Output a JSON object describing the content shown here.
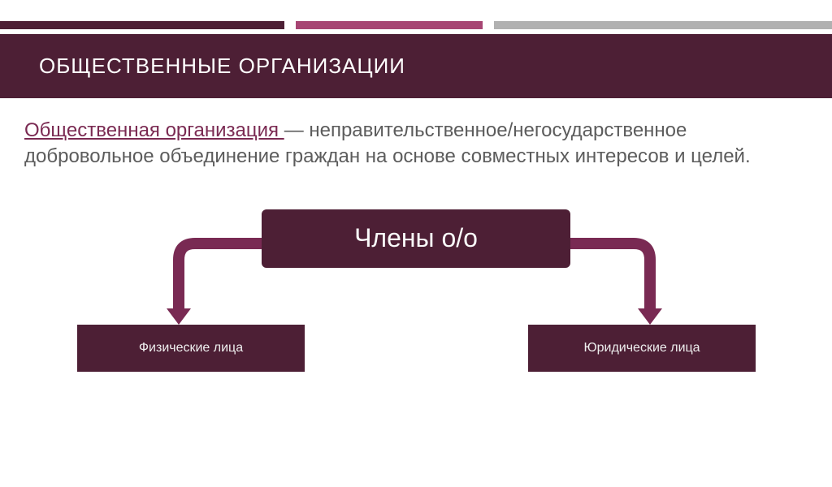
{
  "colors": {
    "stripe1": "#4d1f35",
    "stripe2": "#a74573",
    "stripe3": "#b1b1b1",
    "header_bg": "#4d1f35",
    "header_text": "#ffffff",
    "body_text": "#5c5c5c",
    "term_color": "#7a2a52",
    "root_bg": "#4d1f35",
    "root_text": "#fafafa",
    "child_bg": "#4d1f35",
    "child_text": "#eeeeee",
    "arrow_color": "#792a53"
  },
  "stripes": {
    "w1": 350,
    "gap1": 14,
    "w2": 230,
    "gap2": 14,
    "w3": 416
  },
  "header": {
    "title": "ОБЩЕСТВЕННЫЕ ОРГАНИЗАЦИИ"
  },
  "definition": {
    "term": "Общественная организация ",
    "rest": "— неправительственное/негосударственное добровольное объединение граждан на основе совместных интересов и целей."
  },
  "diagram": {
    "type": "tree",
    "root": {
      "label": "Члены о/о"
    },
    "children": [
      {
        "label": "Физические лица"
      },
      {
        "label": "Юридические лица"
      }
    ],
    "arrow": {
      "stroke_width": 14,
      "head_width": 30,
      "head_height": 20
    }
  }
}
